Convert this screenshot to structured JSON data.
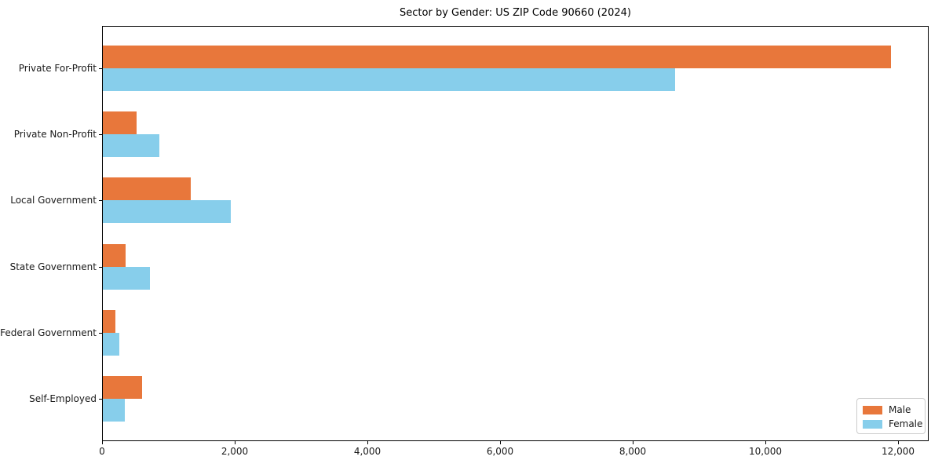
{
  "chart_data": {
    "type": "bar",
    "orientation": "horizontal",
    "title": "Sector by Gender: US ZIP Code 90660 (2024)",
    "categories": [
      "Private For-Profit",
      "Private Non-Profit",
      "Local Government",
      "State Government",
      "Federal Government",
      "Self-Employed"
    ],
    "series": [
      {
        "name": "Male",
        "color": "#E8773B",
        "values": [
          11890,
          520,
          1340,
          350,
          200,
          600
        ]
      },
      {
        "name": "Female",
        "color": "#87CEEB",
        "values": [
          8640,
          860,
          1940,
          725,
          265,
          340
        ]
      }
    ],
    "xlabel": "",
    "ylabel": "",
    "x_ticks": [
      "0",
      "2,000",
      "4,000",
      "6,000",
      "8,000",
      "10,000",
      "12,000"
    ],
    "x_tick_values": [
      0,
      2000,
      4000,
      6000,
      8000,
      10000,
      12000
    ],
    "xlim": [
      0,
      12460
    ],
    "grid": false,
    "legend_position": "lower right",
    "colors": {
      "male_bar": "#E8773B",
      "female_bar": "#87CEEB",
      "spine": "#000000",
      "legend_border": "#cccccc",
      "background": "#ffffff"
    }
  }
}
